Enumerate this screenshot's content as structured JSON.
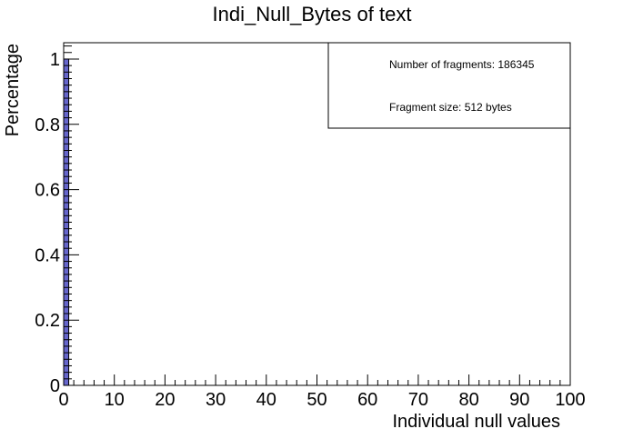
{
  "chart_data": {
    "type": "bar",
    "title": "Indi_Null_Bytes of text",
    "xlabel": "Individual null values",
    "ylabel": "Percentage",
    "xlim": [
      0,
      100
    ],
    "ylim": [
      0,
      1.05
    ],
    "x_ticks": [
      "0",
      "10",
      "20",
      "30",
      "40",
      "50",
      "60",
      "70",
      "80",
      "90",
      "100"
    ],
    "y_ticks": [
      "0",
      "0.2",
      "0.4",
      "0.6",
      "0.8",
      "1"
    ],
    "bin_width": 1,
    "bars": [
      {
        "x": 0,
        "value": 1.0
      }
    ],
    "bar_color": "#6666cc",
    "grid": false,
    "legend_placement": "top-right",
    "stats": {
      "fragments": "Number of fragments: 186345",
      "fragment_size": "Fragment size: 512 bytes"
    }
  }
}
